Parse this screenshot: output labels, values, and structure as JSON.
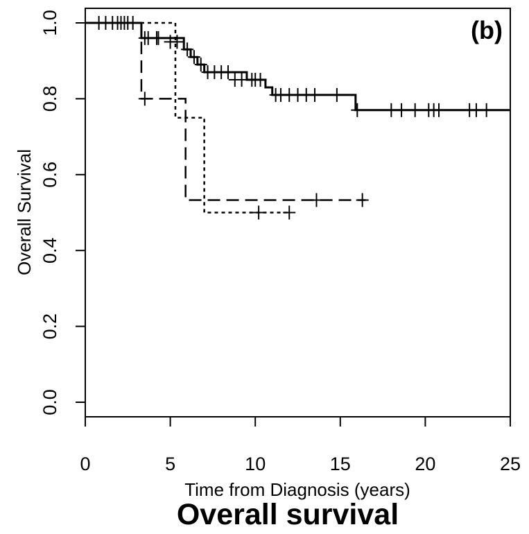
{
  "caption": "Overall survival",
  "chart_data": {
    "type": "line",
    "chart_subtype": "kaplan-meier step",
    "panel_label": "(b)",
    "xlabel": "Time from Diagnosis (years)",
    "ylabel": "Overall Survival",
    "xlim": [
      0,
      25
    ],
    "ylim": [
      0,
      1.0
    ],
    "x_ticks": [
      0,
      5,
      10,
      15,
      20,
      25
    ],
    "x_tick_labels": [
      "0",
      "5",
      "10",
      "15",
      "20",
      "25"
    ],
    "y_ticks": [
      0,
      0.2,
      0.4,
      0.6,
      0.8,
      1.0
    ],
    "y_tick_labels": [
      "0.0",
      "0.2",
      "0.4",
      "0.6",
      "0.8",
      "1.0"
    ],
    "grid": false,
    "legend": "none",
    "series": [
      {
        "style": "solid",
        "steps": [
          [
            0,
            1.0
          ],
          [
            3.3,
            0.96
          ],
          [
            5.8,
            0.93
          ],
          [
            6.2,
            0.91
          ],
          [
            6.6,
            0.89
          ],
          [
            7.0,
            0.87
          ],
          [
            9.5,
            0.85
          ],
          [
            10.6,
            0.83
          ],
          [
            11.0,
            0.81
          ],
          [
            15.9,
            0.77
          ],
          [
            25.0,
            0.77
          ]
        ],
        "censored": [
          [
            0.8,
            1.0
          ],
          [
            1.2,
            1.0
          ],
          [
            1.6,
            1.0
          ],
          [
            1.9,
            1.0
          ],
          [
            2.1,
            1.0
          ],
          [
            2.3,
            1.0
          ],
          [
            2.5,
            1.0
          ],
          [
            2.8,
            1.0
          ],
          [
            3.5,
            0.96
          ],
          [
            3.7,
            0.96
          ],
          [
            4.2,
            0.96
          ],
          [
            4.3,
            0.96
          ],
          [
            5.0,
            0.95
          ],
          [
            5.4,
            0.95
          ],
          [
            6.0,
            0.93
          ],
          [
            6.4,
            0.91
          ],
          [
            6.8,
            0.89
          ],
          [
            7.2,
            0.87
          ],
          [
            7.6,
            0.87
          ],
          [
            8.0,
            0.87
          ],
          [
            8.4,
            0.87
          ],
          [
            8.8,
            0.85
          ],
          [
            9.2,
            0.85
          ],
          [
            9.8,
            0.85
          ],
          [
            10.0,
            0.85
          ],
          [
            10.3,
            0.85
          ],
          [
            11.2,
            0.81
          ],
          [
            11.5,
            0.81
          ],
          [
            12.0,
            0.81
          ],
          [
            12.5,
            0.81
          ],
          [
            13.0,
            0.81
          ],
          [
            13.5,
            0.81
          ],
          [
            14.8,
            0.81
          ],
          [
            16.0,
            0.77
          ],
          [
            18.0,
            0.77
          ],
          [
            18.6,
            0.77
          ],
          [
            19.4,
            0.77
          ],
          [
            20.2,
            0.77
          ],
          [
            20.5,
            0.77
          ],
          [
            20.8,
            0.77
          ],
          [
            22.6,
            0.77
          ],
          [
            23.0,
            0.77
          ],
          [
            23.6,
            0.77
          ]
        ]
      },
      {
        "style": "dashed",
        "steps": [
          [
            0,
            1.0
          ],
          [
            3.3,
            0.8
          ],
          [
            5.9,
            0.533
          ],
          [
            16.5,
            0.533
          ]
        ],
        "censored": [
          [
            3.5,
            0.8
          ],
          [
            13.6,
            0.533
          ],
          [
            16.3,
            0.533
          ]
        ]
      },
      {
        "style": "dotted",
        "steps": [
          [
            0,
            1.0
          ],
          [
            5.3,
            0.75
          ],
          [
            7.0,
            0.5
          ],
          [
            12.0,
            0.5
          ]
        ],
        "censored": [
          [
            10.2,
            0.5
          ],
          [
            12.0,
            0.5
          ]
        ]
      }
    ]
  }
}
